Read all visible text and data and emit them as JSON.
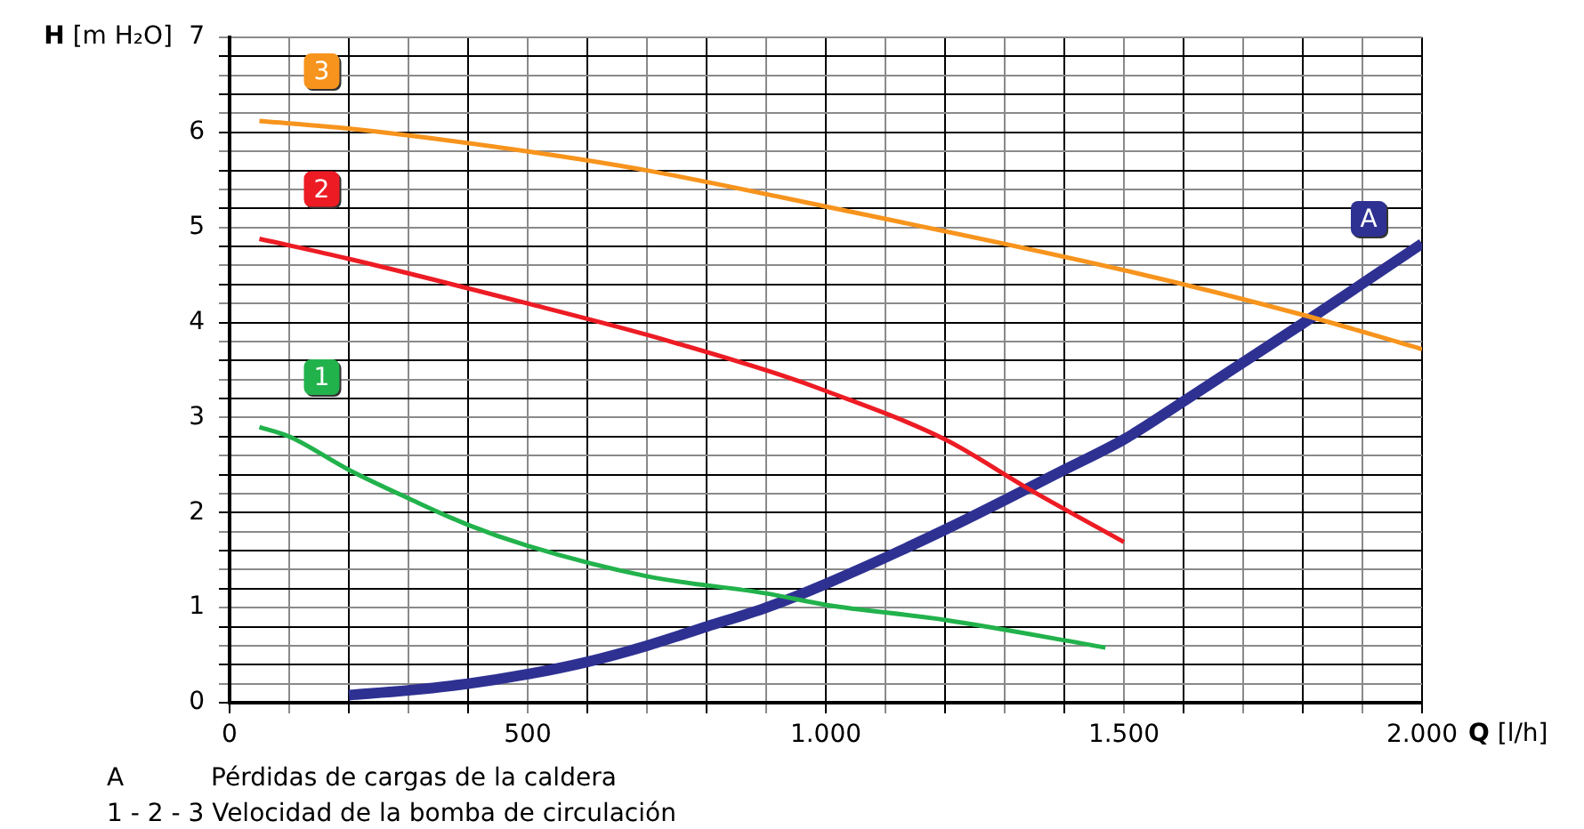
{
  "chart_data": {
    "type": "line",
    "xlabel": "Q [l/h]",
    "ylabel": "H [m H₂O]",
    "xlim": [
      0,
      2000
    ],
    "ylim": [
      0,
      7
    ],
    "xticks": [
      0,
      {
        "value": 100,
        "label": null
      },
      {
        "value": 200,
        "label": null
      },
      {
        "value": 300,
        "label": null
      },
      {
        "value": 400,
        "label": null
      },
      500,
      {
        "value": 600,
        "label": null
      },
      {
        "value": 700,
        "label": null
      },
      {
        "value": 800,
        "label": null
      },
      {
        "value": 900,
        "label": null
      },
      {
        "value": 1000,
        "label": "1.000"
      },
      {
        "value": 1100,
        "label": null
      },
      {
        "value": 1200,
        "label": null
      },
      {
        "value": 1300,
        "label": null
      },
      {
        "value": 1400,
        "label": null
      },
      {
        "value": 1500,
        "label": "1.500"
      },
      {
        "value": 1600,
        "label": null
      },
      {
        "value": 1700,
        "label": null
      },
      {
        "value": 1800,
        "label": null
      },
      {
        "value": 1900,
        "label": null
      },
      {
        "value": 2000,
        "label": "2.000"
      }
    ],
    "yticks": [
      0,
      {
        "value": 0.2,
        "label": null
      },
      {
        "value": 0.4,
        "label": null
      },
      {
        "value": 0.6,
        "label": null
      },
      {
        "value": 0.8,
        "label": null
      },
      1,
      {
        "value": 1.2,
        "label": null
      },
      {
        "value": 1.4,
        "label": null
      },
      {
        "value": 1.6,
        "label": null
      },
      {
        "value": 1.8,
        "label": null
      },
      2,
      {
        "value": 2.2,
        "label": null
      },
      {
        "value": 2.4,
        "label": null
      },
      {
        "value": 2.6,
        "label": null
      },
      {
        "value": 2.8,
        "label": null
      },
      3,
      {
        "value": 3.2,
        "label": null
      },
      {
        "value": 3.4,
        "label": null
      },
      {
        "value": 3.6,
        "label": null
      },
      {
        "value": 3.8,
        "label": null
      },
      4,
      {
        "value": 4.2,
        "label": null
      },
      {
        "value": 4.4,
        "label": null
      },
      {
        "value": 4.6,
        "label": null
      },
      {
        "value": 4.8,
        "label": null
      },
      5,
      {
        "value": 5.2,
        "label": null
      },
      {
        "value": 5.4,
        "label": null
      },
      {
        "value": 5.6,
        "label": null
      },
      {
        "value": 5.8,
        "label": null
      },
      6,
      {
        "value": 6.2,
        "label": null
      },
      {
        "value": 6.4,
        "label": null
      },
      {
        "value": 6.6,
        "label": null
      },
      {
        "value": 6.8,
        "label": null
      },
      7
    ],
    "grid": true,
    "legend": false,
    "marker": "none",
    "line_style": "solid",
    "series": [
      {
        "name": "3",
        "color": "#f7941d",
        "x": [
          50,
          200,
          500,
          700,
          1000,
          1500,
          1800,
          2000
        ],
        "values": [
          6.12,
          6.04,
          5.8,
          5.6,
          5.22,
          4.55,
          4.08,
          3.72
        ]
      },
      {
        "name": "2",
        "color": "#ed1c24",
        "x": [
          50,
          200,
          500,
          700,
          928,
          1000,
          1200,
          1340,
          1500
        ],
        "values": [
          4.88,
          4.67,
          4.2,
          3.87,
          3.44,
          3.28,
          2.77,
          2.25,
          1.69
        ]
      },
      {
        "name": "1",
        "color": "#22b24c",
        "x": [
          50,
          100,
          200,
          300,
          400,
          500,
          700,
          900,
          1000,
          1200,
          1469
        ],
        "values": [
          2.9,
          2.8,
          2.45,
          2.15,
          1.87,
          1.65,
          1.33,
          1.15,
          1.03,
          0.87,
          0.58
        ]
      },
      {
        "name": "A",
        "color": "#2e3192",
        "x": [
          200,
          300,
          400,
          500,
          600,
          700,
          800,
          900,
          1000,
          1200,
          1400,
          1500,
          1600,
          1800,
          2000
        ],
        "values": [
          0.08,
          0.13,
          0.2,
          0.3,
          0.43,
          0.6,
          0.8,
          1.0,
          1.25,
          1.82,
          2.45,
          2.77,
          3.17,
          3.99,
          4.83
        ]
      }
    ],
    "annotations": [
      "A           Pérdidas de cargas de la caldera",
      "1 - 2 - 3 Velocidad de la bomba de circulación"
    ]
  }
}
